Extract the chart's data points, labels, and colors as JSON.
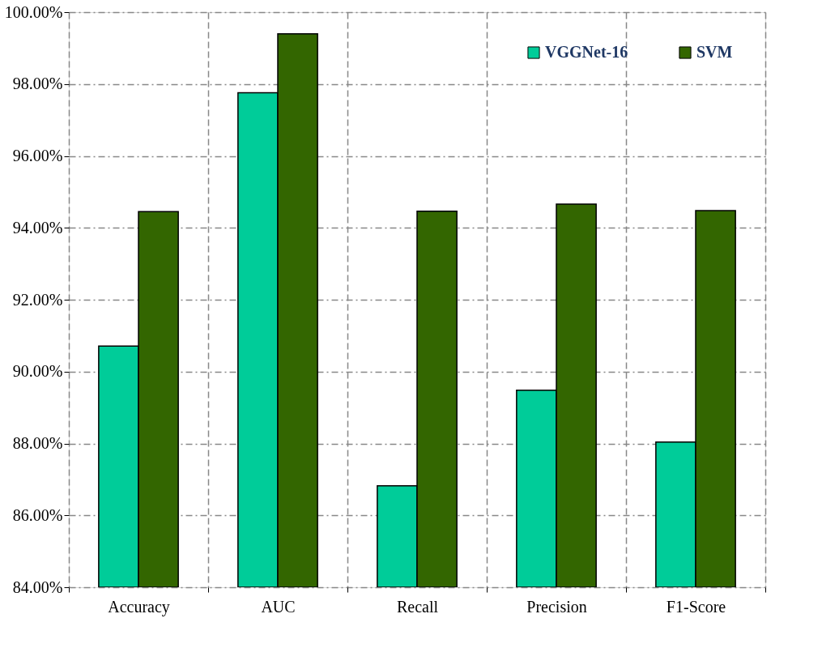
{
  "chart_data": {
    "type": "bar",
    "categories": [
      "Accuracy",
      "AUC",
      "Recall",
      "Precision",
      "F1-Score"
    ],
    "series": [
      {
        "name": "VGGNet-16",
        "color": "#00cc99",
        "values": [
          90.71,
          97.76,
          86.82,
          89.48,
          88.04
        ]
      },
      {
        "name": "SVM",
        "color": "#336600",
        "values": [
          94.45,
          99.4,
          94.46,
          94.66,
          94.48
        ]
      }
    ],
    "ylim": [
      84,
      100
    ],
    "yticks": [
      {
        "value": 84,
        "label": "84.00%"
      },
      {
        "value": 86,
        "label": "86.00%"
      },
      {
        "value": 88,
        "label": "88.00%"
      },
      {
        "value": 90,
        "label": "90.00%"
      },
      {
        "value": 92,
        "label": "92.00%"
      },
      {
        "value": 94,
        "label": "94.00%"
      },
      {
        "value": 96,
        "label": "96.00%"
      },
      {
        "value": 98,
        "label": "98.00%"
      },
      {
        "value": 100,
        "label": "100.00%"
      }
    ],
    "grid": true,
    "legend": "top right"
  }
}
